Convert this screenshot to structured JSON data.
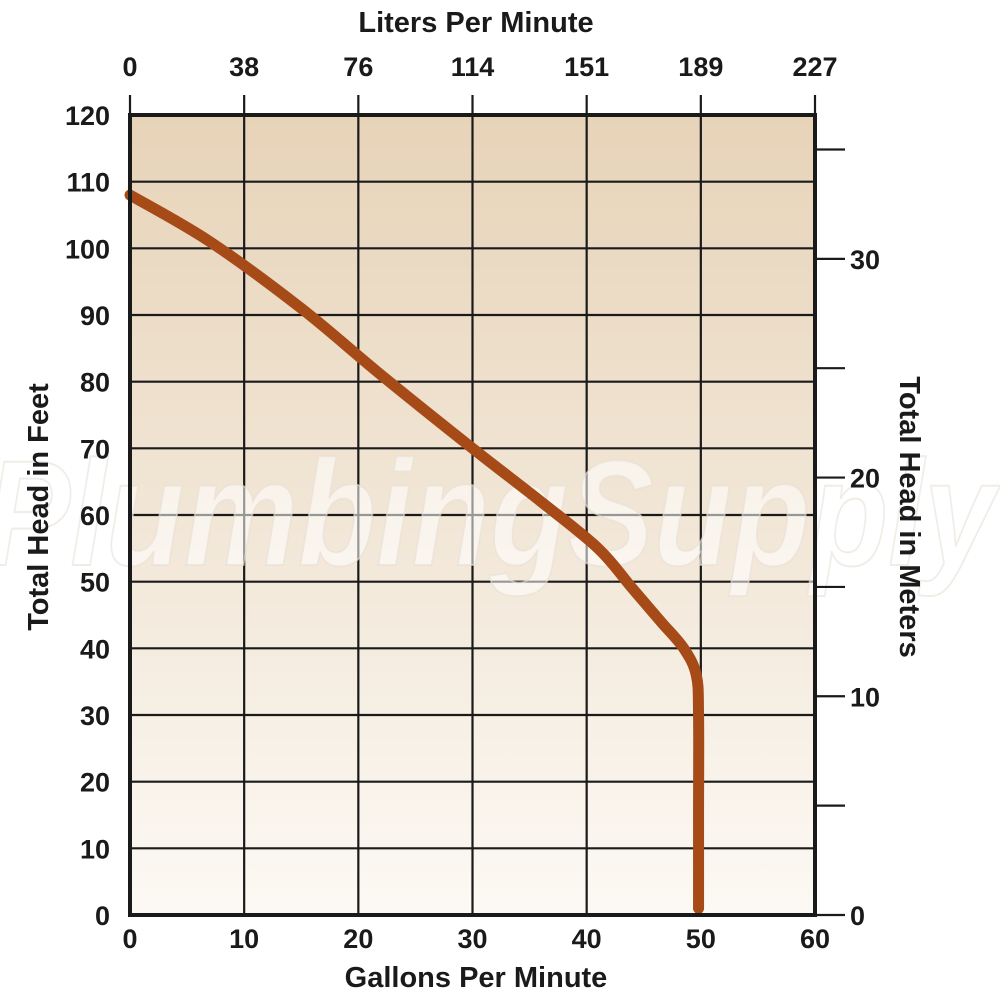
{
  "chart_data": {
    "type": "line",
    "xlabel_bottom": "Gallons Per Minute",
    "xlabel_top": "Liters Per Minute",
    "ylabel_left": "Total Head in Feet",
    "ylabel_right": "Total Head in Meters",
    "xlim": [
      0,
      60
    ],
    "ylim": [
      0,
      120
    ],
    "x_ticks_bottom": [
      "0",
      "10",
      "20",
      "30",
      "40",
      "50",
      "60"
    ],
    "x_ticks_top": [
      "0",
      "38",
      "76",
      "114",
      "151",
      "189",
      "227"
    ],
    "y_ticks_left": [
      "0",
      "10",
      "20",
      "30",
      "40",
      "50",
      "60",
      "70",
      "80",
      "90",
      "100",
      "110",
      "120"
    ],
    "y_ticks_right": [
      "0",
      "10",
      "20",
      "30"
    ],
    "right_axis_ft_per_unit": 3.2808,
    "grid": true,
    "series": [
      {
        "color": "#a64a18",
        "x": [
          0,
          7,
          15,
          22,
          30,
          36,
          41,
          44,
          46.5,
          48.5,
          49.6,
          49.8,
          49.8,
          49.8
        ],
        "y": [
          108,
          101,
          91,
          81,
          70,
          62,
          55,
          49,
          44,
          40,
          36,
          30,
          15,
          1
        ]
      }
    ],
    "watermark": "PlumbingSupply"
  },
  "colors": {
    "plot_top": "#e7d3b8",
    "plot_bottom": "#fcf9f4",
    "curve": "#a64a18"
  }
}
